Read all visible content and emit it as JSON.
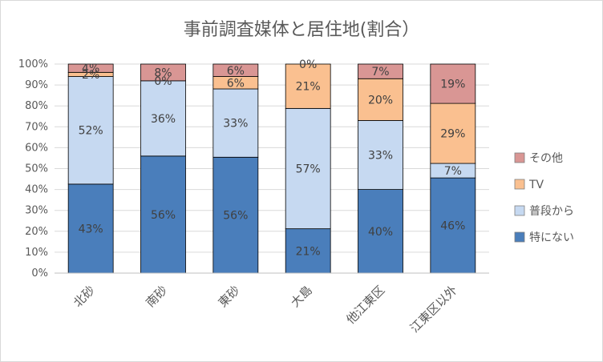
{
  "chart_data": {
    "type": "bar",
    "stacked": true,
    "normalized": true,
    "title": "事前調査媒体と居住地(割合）",
    "xlabel": "",
    "ylabel": "",
    "ylim": [
      0,
      100
    ],
    "yticks": [
      "0%",
      "10%",
      "20%",
      "30%",
      "40%",
      "50%",
      "60%",
      "70%",
      "80%",
      "90%",
      "100%"
    ],
    "grid": true,
    "legend_position": "right",
    "categories": [
      "北砂",
      "南砂",
      "東砂",
      "大島",
      "他江東区",
      "江東区以外"
    ],
    "series": [
      {
        "name": "特にない",
        "color": "#4a7ebb",
        "values": [
          43,
          56,
          56,
          21,
          40,
          46
        ],
        "labels": [
          "43%",
          "56%",
          "56%",
          "21%",
          "40%",
          "46%"
        ]
      },
      {
        "name": "普段から",
        "color": "#c6d9f1",
        "values": [
          52,
          36,
          33,
          57,
          33,
          7
        ],
        "labels": [
          "52%",
          "36%",
          "33%",
          "57%",
          "33%",
          "7%"
        ]
      },
      {
        "name": "TV",
        "color": "#fac090",
        "values": [
          2,
          0,
          6,
          21,
          20,
          29
        ],
        "labels": [
          "2%",
          "0%",
          "6%",
          "21%",
          "20%",
          "29%"
        ]
      },
      {
        "name": "その他",
        "color": "#d99694",
        "values": [
          4,
          8,
          6,
          0,
          7,
          19
        ],
        "labels": [
          "4%",
          "8%",
          "6%",
          "0%",
          "7%",
          "19%"
        ]
      }
    ],
    "legend_order": [
      "その他",
      "TV",
      "普段から",
      "特にない"
    ]
  }
}
